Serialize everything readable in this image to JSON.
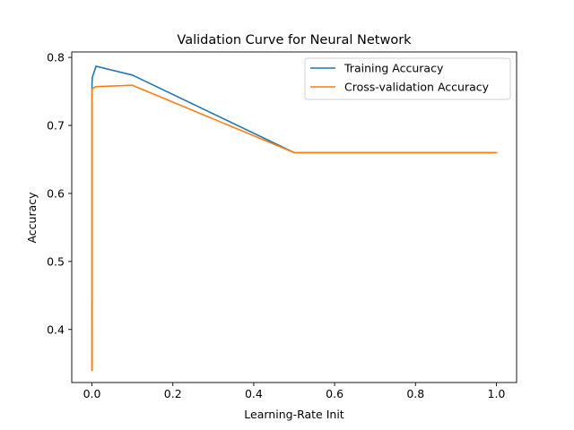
{
  "chart_data": {
    "type": "line",
    "title": "Validation Curve for Neural Network",
    "xlabel": "Learning-Rate Init",
    "ylabel": "Accuracy",
    "xlim": [
      -0.05,
      1.05
    ],
    "ylim": [
      0.322,
      0.808
    ],
    "xticks": [
      0.0,
      0.2,
      0.4,
      0.6,
      0.8,
      1.0
    ],
    "xtick_labels": [
      "0.0",
      "0.2",
      "0.4",
      "0.6",
      "0.8",
      "1.0"
    ],
    "yticks": [
      0.4,
      0.5,
      0.6,
      0.7,
      0.8
    ],
    "ytick_labels": [
      "0.4",
      "0.5",
      "0.6",
      "0.7",
      "0.8"
    ],
    "grid": false,
    "legend_position": "top-right",
    "series": [
      {
        "name": "Training Accuracy",
        "color": "#1f77b4",
        "x": [
          1e-05,
          0.0001,
          0.001,
          0.01,
          0.1,
          0.5,
          1.0
        ],
        "y": [
          0.341,
          0.762,
          0.771,
          0.787,
          0.774,
          0.66,
          0.66
        ]
      },
      {
        "name": "Cross-validation Accuracy",
        "color": "#ff7f0e",
        "x": [
          1e-05,
          0.0001,
          0.001,
          0.01,
          0.1,
          0.5,
          1.0
        ],
        "y": [
          0.34,
          0.752,
          0.754,
          0.757,
          0.759,
          0.66,
          0.66
        ]
      }
    ]
  }
}
